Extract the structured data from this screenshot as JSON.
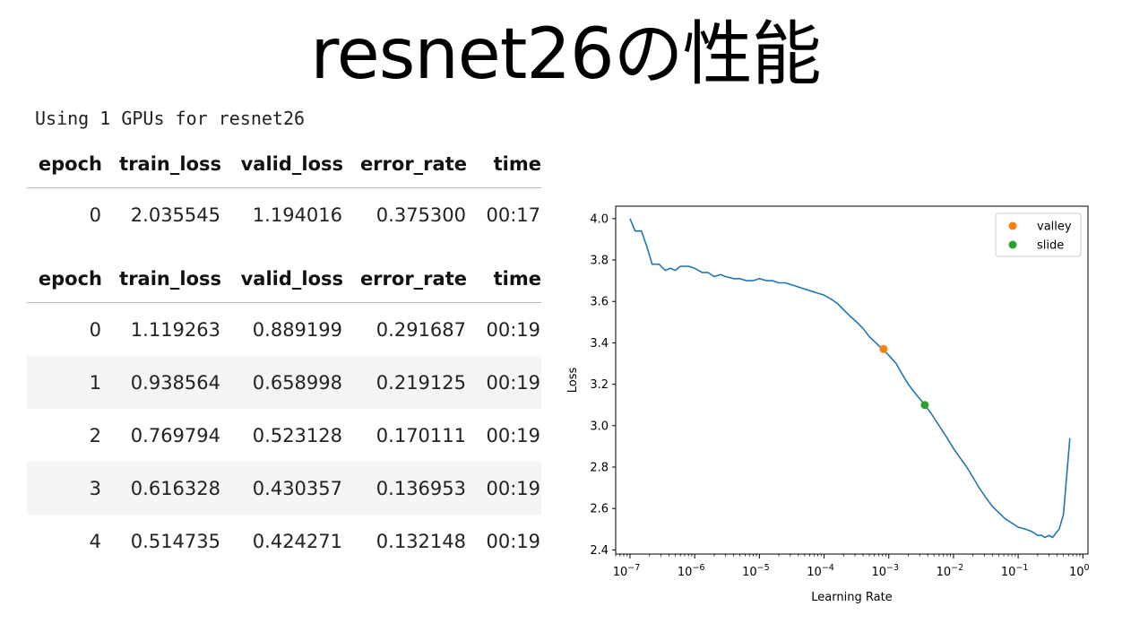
{
  "slide": {
    "title": "resnet26の性能"
  },
  "stdout": "Using 1 GPUs for resnet26",
  "table_headers": [
    "epoch",
    "train_loss",
    "valid_loss",
    "error_rate",
    "time"
  ],
  "tables": [
    {
      "rows": [
        [
          "0",
          "2.035545",
          "1.194016",
          "0.375300",
          "00:17"
        ]
      ]
    },
    {
      "rows": [
        [
          "0",
          "1.119263",
          "0.889199",
          "0.291687",
          "00:19"
        ],
        [
          "1",
          "0.938564",
          "0.658998",
          "0.219125",
          "00:19"
        ],
        [
          "2",
          "0.769794",
          "0.523128",
          "0.170111",
          "00:19"
        ],
        [
          "3",
          "0.616328",
          "0.430357",
          "0.136953",
          "00:19"
        ],
        [
          "4",
          "0.514735",
          "0.424271",
          "0.132148",
          "00:19"
        ]
      ]
    }
  ],
  "chart_data": {
    "type": "line",
    "xlabel": "Learning Rate",
    "ylabel": "Loss",
    "xscale": "log",
    "xlim": [
      6e-08,
      1.2
    ],
    "ylim": [
      2.38,
      4.06
    ],
    "xticks": [
      {
        "value": 1e-07,
        "base": "10",
        "exp": "−7"
      },
      {
        "value": 1e-06,
        "base": "10",
        "exp": "−6"
      },
      {
        "value": 1e-05,
        "base": "10",
        "exp": "−5"
      },
      {
        "value": 0.0001,
        "base": "10",
        "exp": "−4"
      },
      {
        "value": 0.001,
        "base": "10",
        "exp": "−3"
      },
      {
        "value": 0.01,
        "base": "10",
        "exp": "−2"
      },
      {
        "value": 0.1,
        "base": "10",
        "exp": "−1"
      },
      {
        "value": 1,
        "base": "10",
        "exp": "0"
      }
    ],
    "yticks": [
      "2.4",
      "2.6",
      "2.8",
      "3.0",
      "3.2",
      "3.4",
      "3.6",
      "3.8",
      "4.0"
    ],
    "grid": false,
    "legend_position": "top-right",
    "series": [
      {
        "color": "#1f77b4",
        "x": [
          1e-07,
          1.2e-07,
          1.5e-07,
          1.8e-07,
          2.2e-07,
          2.8e-07,
          3.5e-07,
          4.2e-07,
          5e-07,
          6e-07,
          7e-07,
          8e-07,
          1e-06,
          1.3e-06,
          1.6e-06,
          2e-06,
          2.5e-06,
          3e-06,
          4e-06,
          5e-06,
          6.3e-06,
          8e-06,
          1e-05,
          1.3e-05,
          1.6e-05,
          2e-05,
          2.5e-05,
          3.2e-05,
          4e-05,
          5e-05,
          6.3e-05,
          8e-05,
          0.0001,
          0.00013,
          0.00016,
          0.0002,
          0.00025,
          0.00032,
          0.0004,
          0.0005,
          0.00063,
          0.0008,
          0.001,
          0.0013,
          0.0016,
          0.002,
          0.0025,
          0.0032,
          0.0036,
          0.0045,
          0.006,
          0.008,
          0.01,
          0.013,
          0.016,
          0.02,
          0.025,
          0.032,
          0.04,
          0.05,
          0.063,
          0.08,
          0.1,
          0.13,
          0.16,
          0.2,
          0.23,
          0.26,
          0.3,
          0.34,
          0.38,
          0.43,
          0.5,
          0.56,
          0.63
        ],
        "y": [
          4.0,
          3.94,
          3.94,
          3.87,
          3.78,
          3.78,
          3.75,
          3.76,
          3.75,
          3.77,
          3.77,
          3.77,
          3.76,
          3.74,
          3.74,
          3.72,
          3.73,
          3.72,
          3.71,
          3.71,
          3.7,
          3.7,
          3.71,
          3.7,
          3.7,
          3.69,
          3.69,
          3.68,
          3.67,
          3.66,
          3.65,
          3.64,
          3.63,
          3.61,
          3.59,
          3.56,
          3.53,
          3.5,
          3.47,
          3.43,
          3.4,
          3.37,
          3.34,
          3.3,
          3.25,
          3.2,
          3.16,
          3.12,
          3.1,
          3.06,
          3.0,
          2.94,
          2.89,
          2.84,
          2.8,
          2.75,
          2.7,
          2.65,
          2.61,
          2.58,
          2.55,
          2.53,
          2.51,
          2.5,
          2.49,
          2.47,
          2.47,
          2.46,
          2.47,
          2.46,
          2.48,
          2.5,
          2.57,
          2.75,
          2.94
        ]
      }
    ],
    "markers": [
      {
        "name": "valley",
        "color": "#ff7f0e",
        "x": 0.00083,
        "y": 3.37
      },
      {
        "name": "slide",
        "color": "#2ca02c",
        "x": 0.0036,
        "y": 3.1
      }
    ]
  }
}
